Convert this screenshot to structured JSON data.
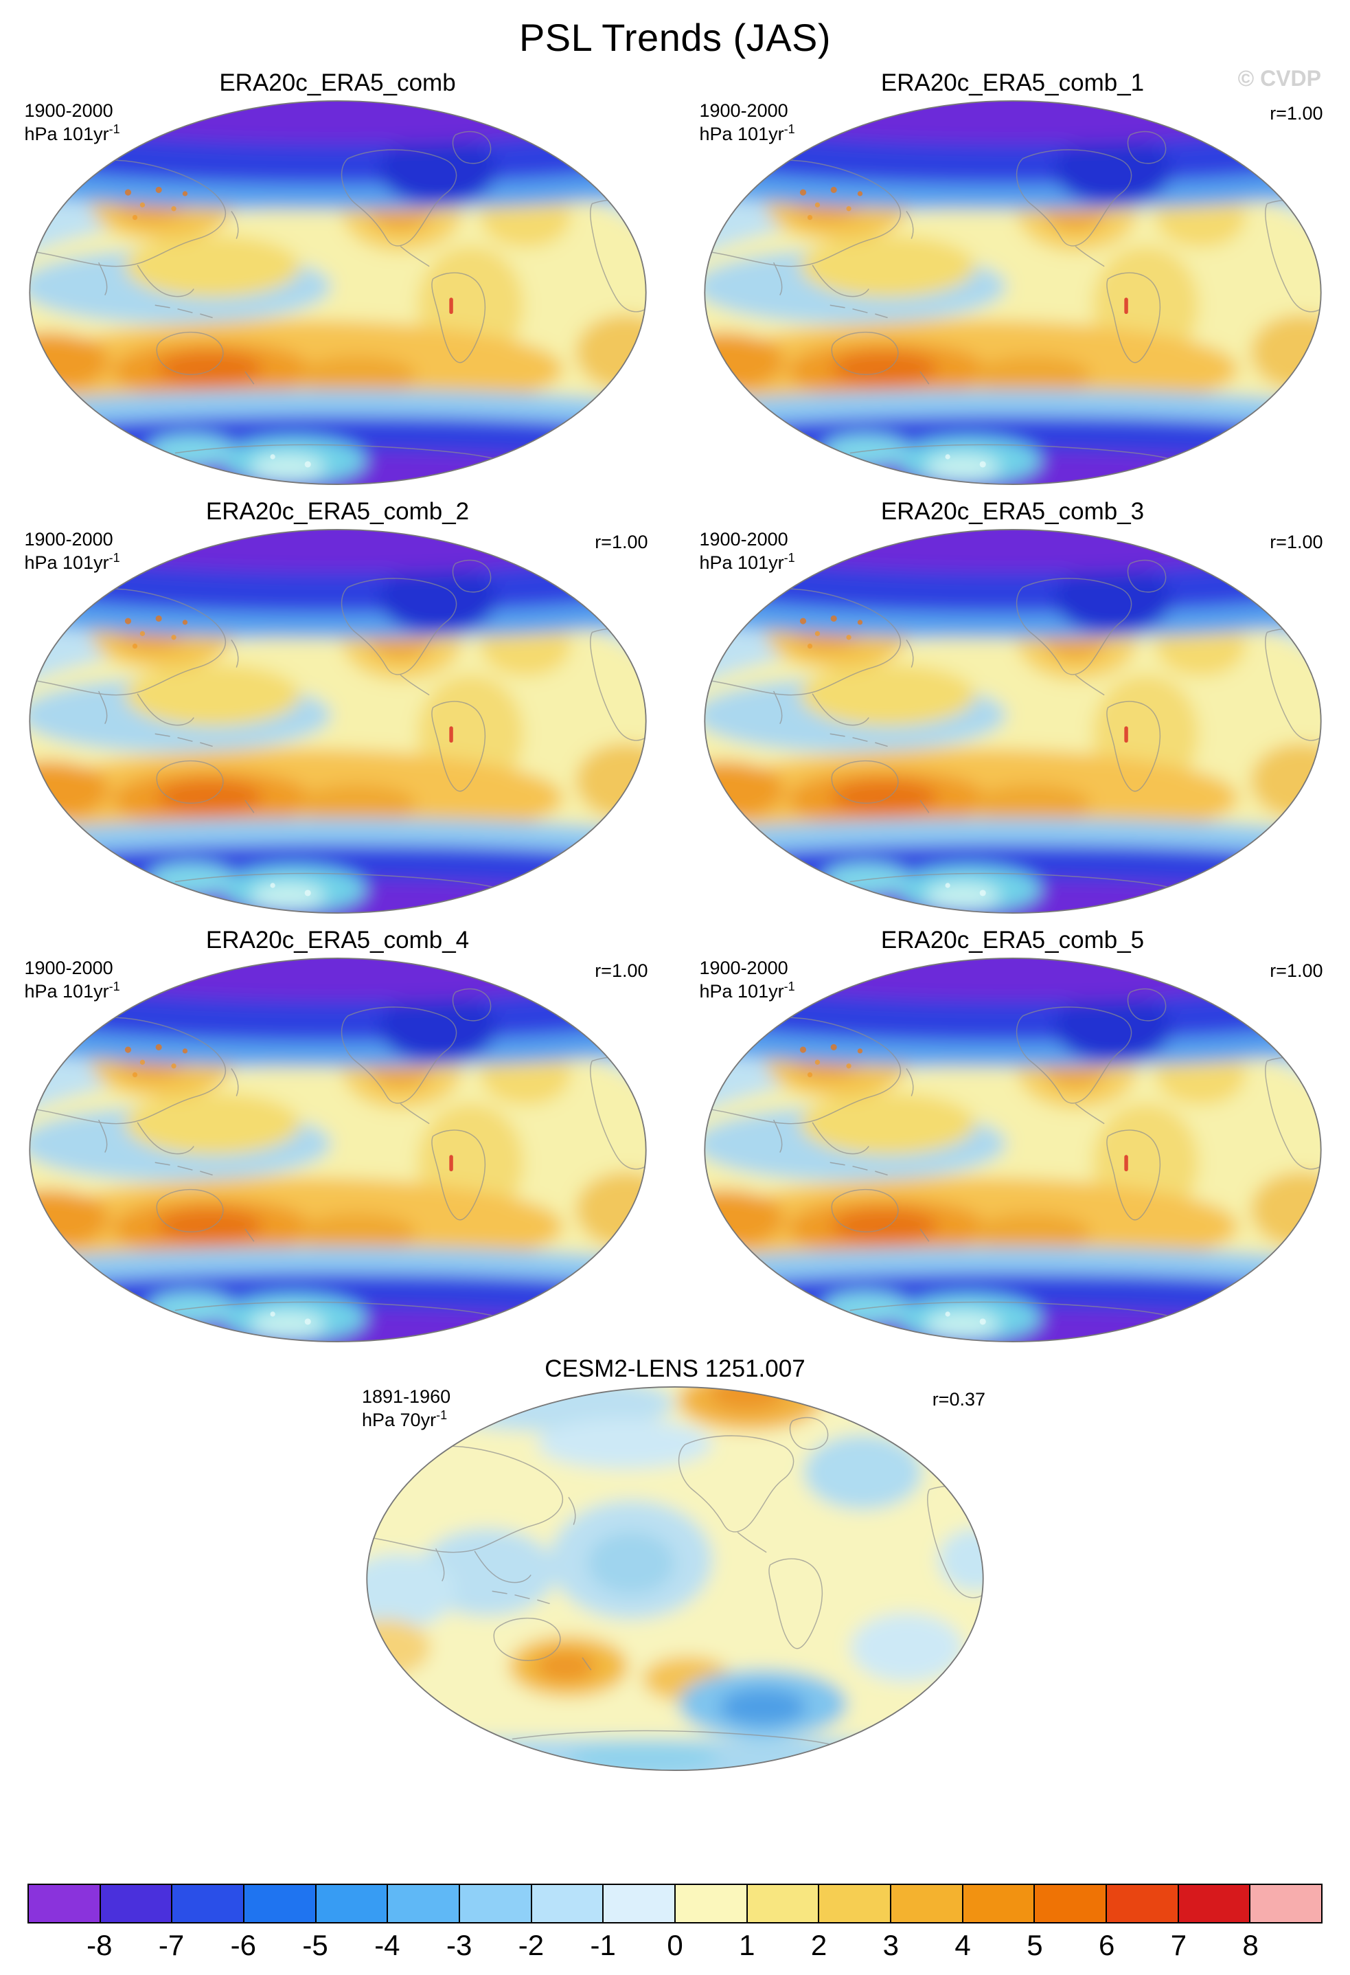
{
  "title": "PSL Trends (JAS)",
  "watermark": "© CVDP",
  "panels": [
    {
      "title": "ERA20c_ERA5_comb",
      "period": "1900-2000",
      "units": "hPa 101yr",
      "units_exp": "-1",
      "r": ""
    },
    {
      "title": "ERA20c_ERA5_comb_1",
      "period": "1900-2000",
      "units": "hPa 101yr",
      "units_exp": "-1",
      "r": "r=1.00"
    },
    {
      "title": "ERA20c_ERA5_comb_2",
      "period": "1900-2000",
      "units": "hPa 101yr",
      "units_exp": "-1",
      "r": "r=1.00"
    },
    {
      "title": "ERA20c_ERA5_comb_3",
      "period": "1900-2000",
      "units": "hPa 101yr",
      "units_exp": "-1",
      "r": "r=1.00"
    },
    {
      "title": "ERA20c_ERA5_comb_4",
      "period": "1900-2000",
      "units": "hPa 101yr",
      "units_exp": "-1",
      "r": "r=1.00"
    },
    {
      "title": "ERA20c_ERA5_comb_5",
      "period": "1900-2000",
      "units": "hPa 101yr",
      "units_exp": "-1",
      "r": "r=1.00"
    },
    {
      "title": "CESM2-LENS 1251.007",
      "period": "1891-1960",
      "units": "hPa 70yr",
      "units_exp": "-1",
      "r": "r=0.37"
    }
  ],
  "colorbar": {
    "labels": [
      "-8",
      "-7",
      "-6",
      "-5",
      "-4",
      "-3",
      "-2",
      "-1",
      "0",
      "1",
      "2",
      "3",
      "4",
      "5",
      "6",
      "7",
      "8"
    ],
    "colors": [
      "#8A33DC",
      "#4A30DC",
      "#2A4FE8",
      "#1F74F0",
      "#379CF3",
      "#5FB8F6",
      "#8FD0F8",
      "#B8E2FA",
      "#DCF0FC",
      "#FBF7BC",
      "#F8E680",
      "#F6CE52",
      "#F4B22F",
      "#F29211",
      "#EF7305",
      "#E94511",
      "#D7191C",
      "#F7ADAD"
    ]
  },
  "chart_data": {
    "type": "heatmap",
    "subtype": "filled-contour global maps, oval (Winkel/Robinson-style) projection, Pacific-centered",
    "title": "PSL Trends (JAS)",
    "variable": "Sea level pressure (PSL) trend",
    "legend_position": "bottom colorbar",
    "colorbar_levels": [
      -8,
      -7,
      -6,
      -5,
      -4,
      -3,
      -2,
      -1,
      0,
      1,
      2,
      3,
      4,
      5,
      6,
      7,
      8
    ],
    "panels": [
      {
        "title": "ERA20c_ERA5_comb",
        "period": "1900-2000",
        "units": "hPa 101yr-1",
        "correlation": null
      },
      {
        "title": "ERA20c_ERA5_comb_1",
        "period": "1900-2000",
        "units": "hPa 101yr-1",
        "correlation": 1.0
      },
      {
        "title": "ERA20c_ERA5_comb_2",
        "period": "1900-2000",
        "units": "hPa 101yr-1",
        "correlation": 1.0
      },
      {
        "title": "ERA20c_ERA5_comb_3",
        "period": "1900-2000",
        "units": "hPa 101yr-1",
        "correlation": 1.0
      },
      {
        "title": "ERA20c_ERA5_comb_4",
        "period": "1900-2000",
        "units": "hPa 101yr-1",
        "correlation": 1.0
      },
      {
        "title": "ERA20c_ERA5_comb_5",
        "period": "1900-2000",
        "units": "hPa 101yr-1",
        "correlation": 1.0
      },
      {
        "title": "CESM2-LENS 1251.007",
        "period": "1891-1960",
        "units": "hPa 70yr-1",
        "correlation": 0.37
      }
    ],
    "pattern_notes": "Panels 1-6 (reanalysis combinations) are visually identical: negative trends (blue/purple, about -4 to -8) over Arctic and Antarctic latitudes, weakly positive (pale yellow, 0-1) through tropics, strong positive trends (orange, 3-6) over southern mid-latitudes with maximum south of Australia and over central Asia/North America (1-3). CESM2-LENS member shows much weaker trends (mostly -1 to 1) with modest positive anomalies in the Arctic and south of Australia and negative anomalies in the Southern Ocean; pattern correlation with observations r=0.37."
  }
}
